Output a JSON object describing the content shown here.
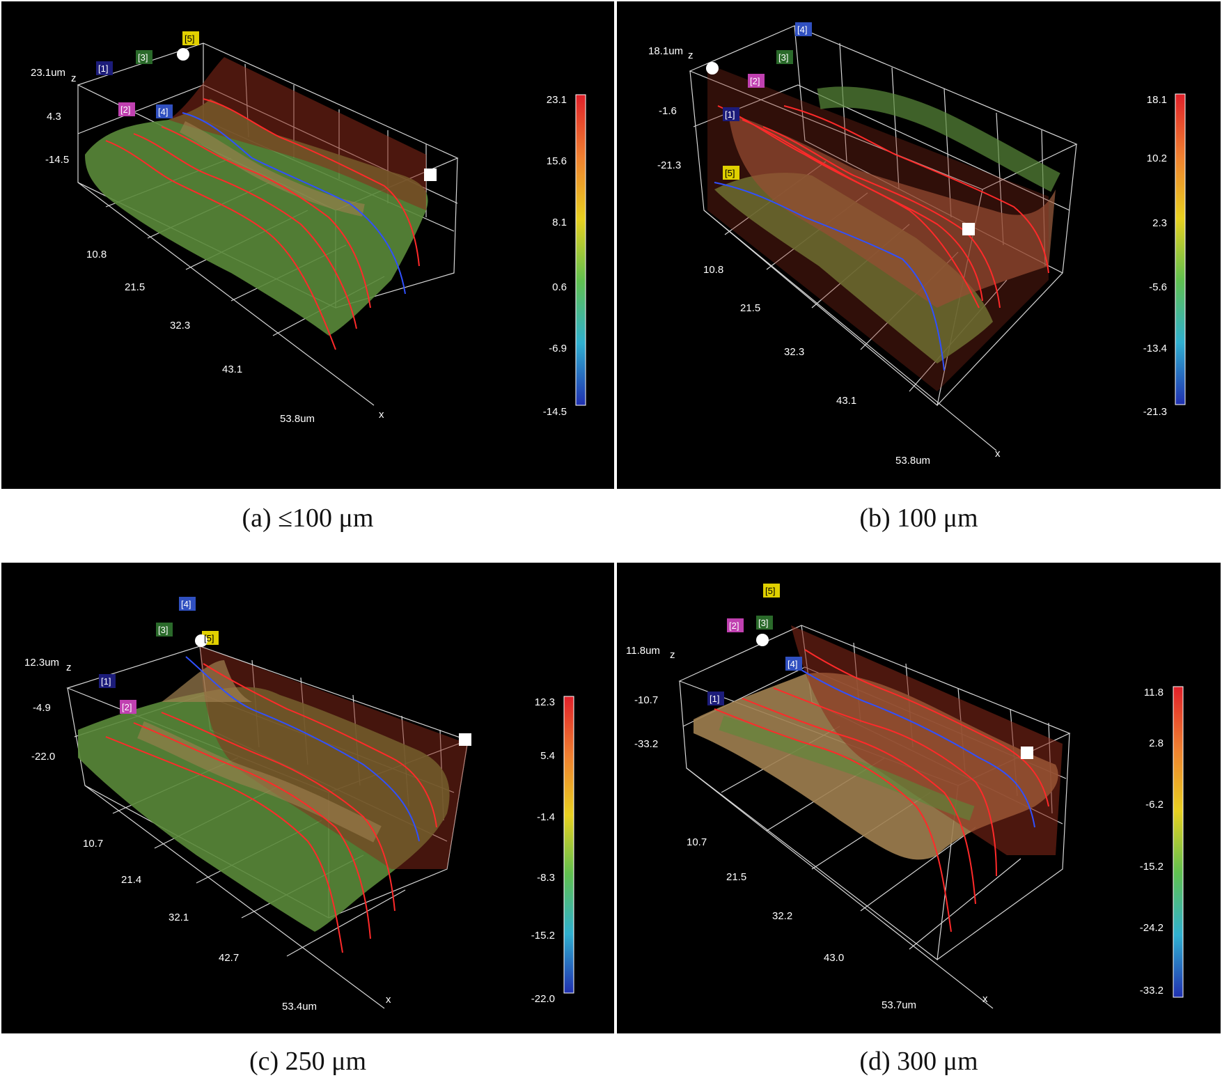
{
  "panels": [
    {
      "caption": "(a) ≤100 μm",
      "z_axis": {
        "top": "23.1um",
        "mid": "4.3",
        "bottom": "-14.5",
        "letter": "z"
      },
      "y_ticks": [
        "10.8",
        "21.5",
        "32.3",
        "43.1",
        "53.8um"
      ],
      "x_letter": "x",
      "colorbar": [
        "23.1",
        "15.6",
        "8.1",
        "0.6",
        "-6.9",
        "-14.5"
      ],
      "markers": [
        "[1]",
        "[2]",
        "[3]",
        "[4]",
        "[5]"
      ]
    },
    {
      "caption": "(b) 100 μm",
      "z_axis": {
        "top": "18.1um",
        "mid": "-1.6",
        "bottom": "-21.3",
        "letter": "z"
      },
      "y_ticks": [
        "10.8",
        "21.5",
        "32.3",
        "43.1",
        "53.8um"
      ],
      "x_letter": "x",
      "colorbar": [
        "18.1",
        "10.2",
        "2.3",
        "-5.6",
        "-13.4",
        "-21.3"
      ],
      "markers": [
        "[1]",
        "[2]",
        "[3]",
        "[4]",
        "[5]"
      ]
    },
    {
      "caption": "(c) 250 μm",
      "z_axis": {
        "top": "12.3um",
        "mid": "-4.9",
        "bottom": "-22.0",
        "letter": "z"
      },
      "y_ticks": [
        "10.7",
        "21.4",
        "32.1",
        "42.7",
        "53.4um"
      ],
      "x_letter": "x",
      "colorbar": [
        "12.3",
        "5.4",
        "-1.4",
        "-8.3",
        "-15.2",
        "-22.0"
      ],
      "markers": [
        "[1]",
        "[2]",
        "[3]",
        "[4]",
        "[5]"
      ]
    },
    {
      "caption": "(d) 300 μm",
      "z_axis": {
        "top": "11.8um",
        "mid": "-10.7",
        "bottom": "-33.2",
        "letter": "z"
      },
      "y_ticks": [
        "10.7",
        "21.5",
        "32.2",
        "43.0",
        "53.7um"
      ],
      "x_letter": "x",
      "colorbar": [
        "11.8",
        "2.8",
        "-6.2",
        "-15.2",
        "-24.2",
        "-33.2"
      ],
      "markers": [
        "[1]",
        "[2]",
        "[3]",
        "[4]",
        "[5]"
      ]
    }
  ],
  "colors": {
    "panel_bg": "#000000",
    "grid": "#d8d8d8",
    "profile_red": "#ff2a2a",
    "profile_blue": "#3050ff",
    "plane_red": "#8a2a1a",
    "surface_green": "#5a8a3a",
    "surface_tan": "#a08050",
    "marker_colors": [
      "#1c1c7a",
      "#c040b0",
      "#2a6a2a",
      "#3050c0",
      "#e0d000"
    ]
  }
}
